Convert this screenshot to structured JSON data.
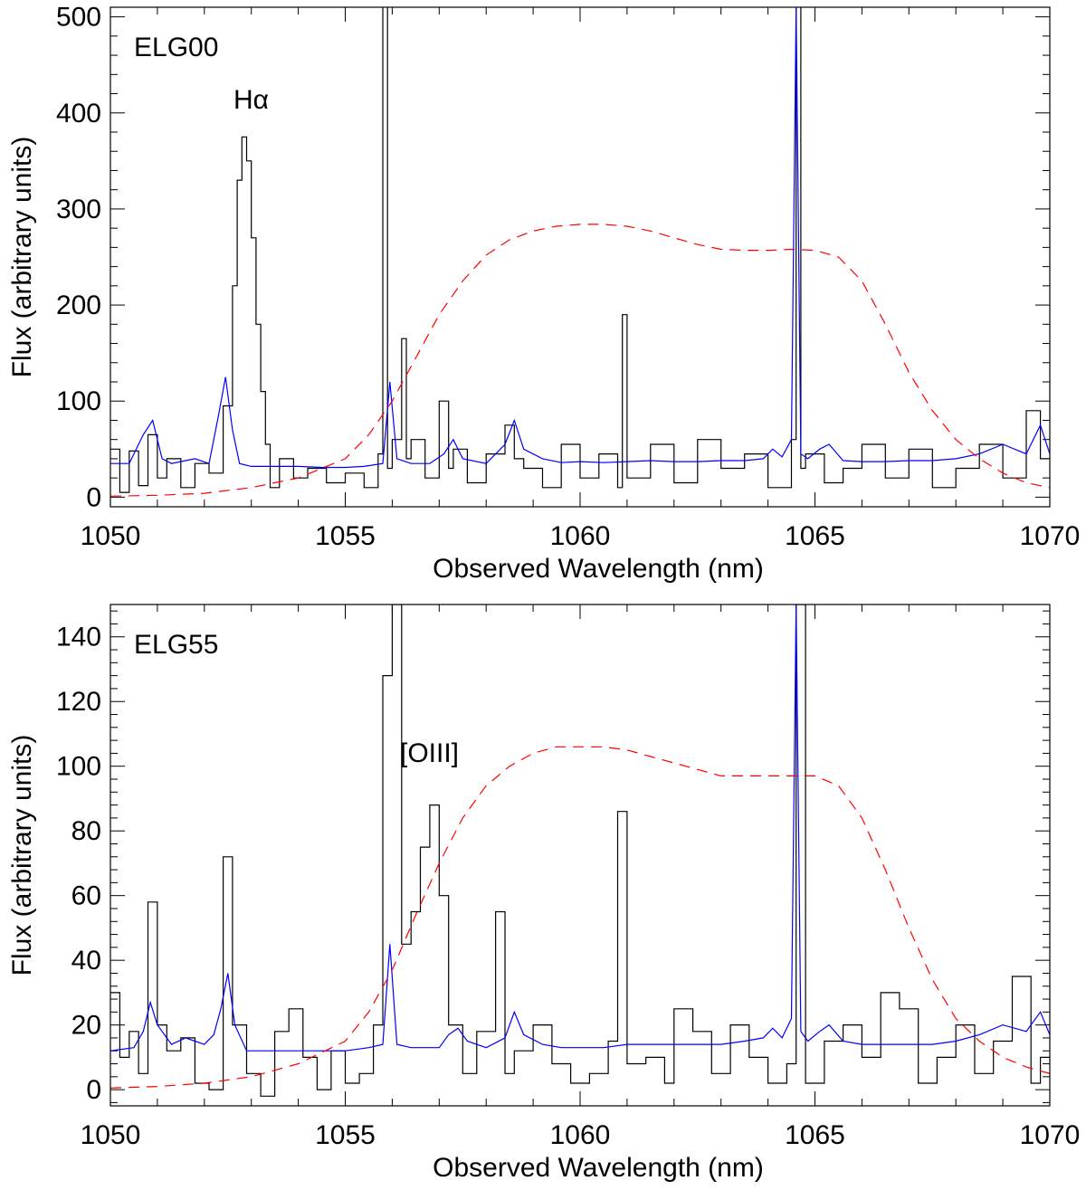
{
  "chart_data": [
    {
      "type": "line",
      "panel_label": "ELG00",
      "line_label": "Hα",
      "xlabel": "Observed Wavelength (nm)",
      "ylabel": "Flux (arbitrary units)",
      "xlim": [
        1050,
        1070
      ],
      "ylim": [
        -10,
        510
      ],
      "xticks": [
        1050,
        1055,
        1060,
        1065,
        1070
      ],
      "xtick_labels": [
        "1050",
        "1055",
        "1060",
        "1065",
        "1070"
      ],
      "yticks": [
        0,
        100,
        200,
        300,
        400,
        500
      ],
      "ytick_labels": [
        "0",
        "100",
        "200",
        "300",
        "400",
        "500"
      ],
      "grid": false,
      "colors": {
        "spectrum": "#000000",
        "model": "#0000ff",
        "filter": "#ff0000"
      },
      "series": [
        {
          "style": "steps",
          "color": "#000000",
          "x": [
            1050.0,
            1050.2,
            1050.4,
            1050.6,
            1050.8,
            1051.0,
            1051.2,
            1051.5,
            1051.8,
            1052.1,
            1052.4,
            1052.6,
            1052.7,
            1052.8,
            1052.9,
            1053.0,
            1053.1,
            1053.2,
            1053.3,
            1053.4,
            1053.6,
            1053.9,
            1054.2,
            1054.6,
            1055.0,
            1055.4,
            1055.7,
            1055.8,
            1055.9,
            1056.0,
            1056.2,
            1056.3,
            1056.4,
            1056.7,
            1057.0,
            1057.2,
            1057.3,
            1057.6,
            1058.0,
            1058.4,
            1058.6,
            1058.8,
            1059.2,
            1059.6,
            1060.0,
            1060.4,
            1060.8,
            1060.9,
            1061.0,
            1061.5,
            1062.0,
            1062.5,
            1063.0,
            1063.5,
            1064.0,
            1064.5,
            1064.6,
            1064.7,
            1064.8,
            1065.2,
            1065.6,
            1066.0,
            1066.5,
            1067.0,
            1067.5,
            1068.0,
            1068.5,
            1069.0,
            1069.5,
            1069.8
          ],
          "y": [
            50,
            5,
            48,
            12,
            65,
            20,
            40,
            10,
            35,
            25,
            95,
            220,
            330,
            375,
            350,
            270,
            180,
            110,
            55,
            10,
            40,
            20,
            30,
            15,
            25,
            10,
            45,
            700,
            30,
            60,
            165,
            40,
            60,
            20,
            100,
            30,
            50,
            15,
            45,
            75,
            40,
            30,
            10,
            55,
            20,
            45,
            10,
            190,
            20,
            55,
            15,
            60,
            30,
            45,
            10,
            60,
            700,
            30,
            45,
            15,
            30,
            55,
            20,
            50,
            10,
            30,
            55,
            20,
            90,
            40
          ]
        },
        {
          "style": "smooth",
          "color": "#0000ff",
          "x": [
            1050.0,
            1050.4,
            1050.7,
            1050.9,
            1051.1,
            1051.3,
            1051.6,
            1051.8,
            1052.1,
            1052.3,
            1052.45,
            1052.6,
            1052.75,
            1053.0,
            1053.5,
            1054.0,
            1054.5,
            1055.0,
            1055.4,
            1055.8,
            1055.95,
            1056.1,
            1056.4,
            1056.8,
            1057.1,
            1057.3,
            1057.5,
            1058.0,
            1058.4,
            1058.6,
            1058.8,
            1059.2,
            1059.6,
            1060.0,
            1060.5,
            1061.0,
            1061.5,
            1062.0,
            1062.5,
            1063.0,
            1063.5,
            1063.9,
            1064.1,
            1064.3,
            1064.5,
            1064.6,
            1064.7,
            1064.85,
            1065.1,
            1065.3,
            1065.6,
            1066.0,
            1066.5,
            1067.0,
            1067.5,
            1068.0,
            1068.5,
            1069.0,
            1069.5,
            1069.8,
            1070.0
          ],
          "y": [
            35,
            35,
            65,
            80,
            40,
            35,
            38,
            40,
            35,
            85,
            125,
            70,
            35,
            32,
            32,
            32,
            31,
            31,
            32,
            35,
            120,
            40,
            35,
            35,
            45,
            60,
            40,
            35,
            55,
            80,
            50,
            40,
            36,
            37,
            36,
            37,
            38,
            37,
            37,
            38,
            38,
            40,
            50,
            42,
            60,
            510,
            45,
            40,
            50,
            55,
            38,
            37,
            37,
            38,
            38,
            40,
            45,
            55,
            45,
            75,
            45
          ]
        },
        {
          "style": "dashed",
          "color": "#ff0000",
          "x": [
            1050.0,
            1051.0,
            1052.0,
            1053.0,
            1054.0,
            1055.0,
            1055.5,
            1056.0,
            1056.5,
            1057.0,
            1057.5,
            1058.0,
            1058.5,
            1059.0,
            1059.5,
            1060.0,
            1060.5,
            1061.0,
            1061.5,
            1062.0,
            1062.5,
            1063.0,
            1063.5,
            1064.0,
            1064.5,
            1065.0,
            1065.5,
            1066.0,
            1066.5,
            1067.0,
            1067.5,
            1068.0,
            1068.5,
            1069.0,
            1069.5,
            1070.0
          ],
          "y": [
            1,
            2,
            4,
            10,
            20,
            40,
            65,
            100,
            145,
            190,
            225,
            252,
            268,
            277,
            282,
            284,
            284,
            282,
            277,
            270,
            263,
            258,
            257,
            257,
            258,
            257,
            250,
            225,
            180,
            130,
            90,
            60,
            40,
            25,
            15,
            10
          ]
        }
      ]
    },
    {
      "type": "line",
      "panel_label": "ELG55",
      "line_label": "[OIII]",
      "xlabel": "Observed Wavelength (nm)",
      "ylabel": "Flux (arbitrary units)",
      "xlim": [
        1050,
        1070
      ],
      "ylim": [
        -5,
        150
      ],
      "xticks": [
        1050,
        1055,
        1060,
        1065,
        1070
      ],
      "xtick_labels": [
        "1050",
        "1055",
        "1060",
        "1065",
        "1070"
      ],
      "yticks": [
        0,
        20,
        40,
        60,
        80,
        100,
        120,
        140
      ],
      "ytick_labels": [
        "0",
        "20",
        "40",
        "60",
        "80",
        "100",
        "120",
        "140"
      ],
      "grid": false,
      "colors": {
        "spectrum": "#000000",
        "model": "#0000ff",
        "filter": "#ff0000"
      },
      "series": [
        {
          "style": "steps",
          "color": "#000000",
          "x": [
            1050.0,
            1050.2,
            1050.4,
            1050.6,
            1050.8,
            1051.0,
            1051.2,
            1051.5,
            1051.8,
            1052.1,
            1052.4,
            1052.6,
            1052.9,
            1053.2,
            1053.5,
            1053.8,
            1054.1,
            1054.4,
            1054.7,
            1055.0,
            1055.3,
            1055.6,
            1055.8,
            1056.0,
            1056.2,
            1056.4,
            1056.6,
            1056.8,
            1057.0,
            1057.2,
            1057.5,
            1057.8,
            1058.2,
            1058.4,
            1058.6,
            1059.0,
            1059.4,
            1059.8,
            1060.2,
            1060.6,
            1060.8,
            1061.0,
            1061.4,
            1061.8,
            1062.0,
            1062.4,
            1062.8,
            1063.2,
            1063.6,
            1064.0,
            1064.4,
            1064.6,
            1064.8,
            1065.2,
            1065.6,
            1066.0,
            1066.4,
            1066.8,
            1067.2,
            1067.6,
            1068.0,
            1068.4,
            1068.8,
            1069.2,
            1069.6,
            1069.8
          ],
          "y": [
            30,
            10,
            18,
            5,
            58,
            20,
            12,
            16,
            2,
            0,
            72,
            20,
            5,
            -2,
            18,
            25,
            10,
            0,
            12,
            2,
            5,
            20,
            128,
            150,
            45,
            55,
            75,
            88,
            60,
            20,
            5,
            18,
            55,
            5,
            12,
            20,
            8,
            2,
            5,
            15,
            86,
            8,
            10,
            2,
            25,
            18,
            5,
            20,
            10,
            2,
            8,
            150,
            2,
            15,
            20,
            10,
            30,
            25,
            2,
            10,
            20,
            5,
            15,
            35,
            2,
            10
          ]
        },
        {
          "style": "smooth",
          "color": "#0000ff",
          "x": [
            1050.0,
            1050.5,
            1050.7,
            1050.85,
            1051.0,
            1051.3,
            1051.6,
            1051.8,
            1052.0,
            1052.2,
            1052.35,
            1052.5,
            1052.65,
            1052.9,
            1053.5,
            1054.0,
            1054.5,
            1055.0,
            1055.5,
            1055.8,
            1055.95,
            1056.1,
            1056.4,
            1057.0,
            1057.2,
            1057.4,
            1057.6,
            1058.0,
            1058.4,
            1058.6,
            1058.8,
            1059.2,
            1059.6,
            1060.0,
            1060.5,
            1061.0,
            1061.5,
            1062.0,
            1062.5,
            1063.0,
            1063.5,
            1063.9,
            1064.1,
            1064.3,
            1064.5,
            1064.6,
            1064.7,
            1064.85,
            1065.1,
            1065.3,
            1065.6,
            1066.0,
            1066.5,
            1067.0,
            1067.5,
            1068.0,
            1068.5,
            1069.0,
            1069.5,
            1069.8,
            1070.0
          ],
          "y": [
            12,
            13,
            18,
            27,
            20,
            14,
            16,
            15,
            14,
            17,
            25,
            36,
            20,
            12,
            12,
            12,
            12,
            12,
            13,
            14,
            45,
            14,
            13,
            13,
            17,
            19,
            15,
            13,
            16,
            24,
            17,
            14,
            13,
            13,
            13,
            14,
            14,
            14,
            14,
            14,
            15,
            16,
            19,
            16,
            22,
            150,
            18,
            15,
            18,
            20,
            15,
            14,
            14,
            14,
            14,
            15,
            17,
            20,
            18,
            24,
            17
          ]
        },
        {
          "style": "dashed",
          "color": "#ff0000",
          "x": [
            1050.0,
            1051.0,
            1052.0,
            1053.0,
            1054.0,
            1055.0,
            1055.5,
            1056.0,
            1056.5,
            1057.0,
            1057.5,
            1058.0,
            1058.5,
            1059.0,
            1059.5,
            1060.0,
            1060.5,
            1061.0,
            1061.5,
            1062.0,
            1062.5,
            1063.0,
            1063.5,
            1064.0,
            1064.5,
            1065.0,
            1065.5,
            1066.0,
            1066.5,
            1067.0,
            1067.5,
            1068.0,
            1068.5,
            1069.0,
            1069.5,
            1070.0
          ],
          "y": [
            0.5,
            1,
            2,
            4,
            8,
            15,
            24,
            37,
            54,
            70,
            84,
            94,
            100,
            104,
            106,
            106,
            106,
            105,
            103,
            101,
            99,
            97,
            97,
            97,
            97,
            97,
            94,
            84,
            68,
            50,
            34,
            22,
            15,
            10,
            7,
            5
          ]
        }
      ]
    }
  ]
}
